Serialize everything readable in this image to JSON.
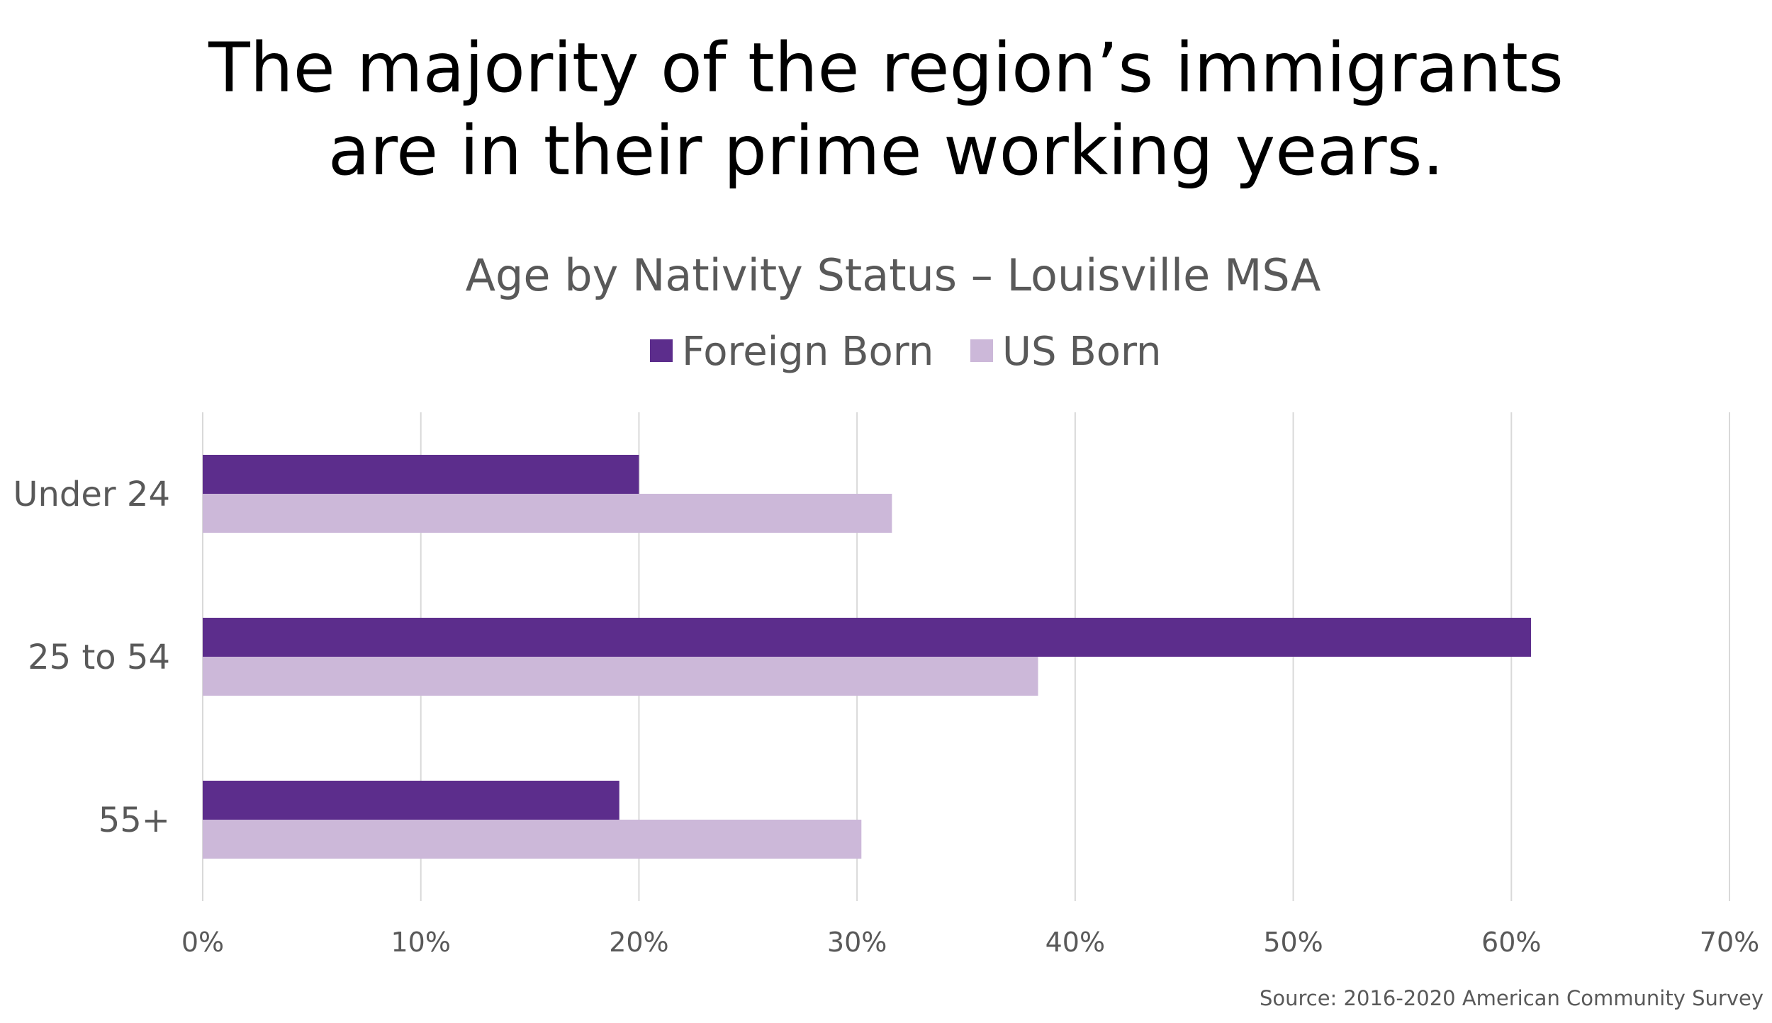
{
  "headline": {
    "line1": "The majority of the region’s immigrants",
    "line2": "are in their prime working years."
  },
  "source": "Source: 2016-2020 American Community Survey",
  "chart_data": {
    "type": "bar",
    "orientation": "horizontal",
    "title": "Age by Nativity Status – Louisville MSA",
    "categories": [
      "Under 24",
      "25 to 54",
      "55+"
    ],
    "series": [
      {
        "name": "Foreign Born",
        "color": "#5c2d8c",
        "values": [
          20.0,
          60.9,
          19.1
        ]
      },
      {
        "name": "US Born",
        "color": "#ccb8d9",
        "values": [
          31.6,
          38.3,
          30.2
        ]
      }
    ],
    "xlim": [
      0,
      70
    ],
    "x_ticks": [
      "0%",
      "10%",
      "20%",
      "30%",
      "40%",
      "50%",
      "60%",
      "70%"
    ],
    "grid": true,
    "legend_position": "top-center"
  }
}
